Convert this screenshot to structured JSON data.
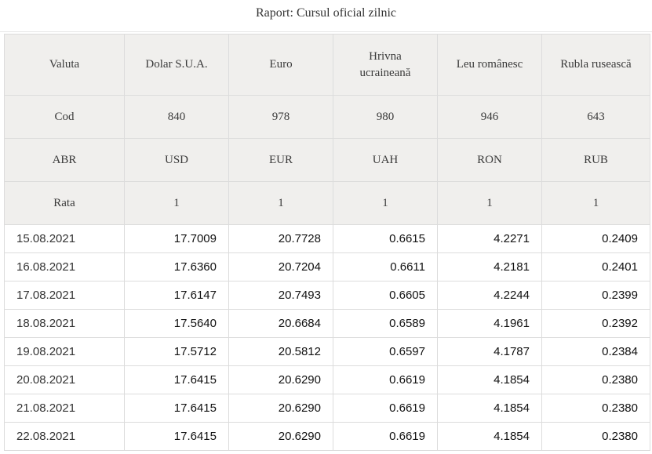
{
  "title": "Raport: Cursul oficial zilnic",
  "header": {
    "valuta": {
      "label": "Valuta",
      "names": [
        "Dolar S.U.A.",
        "Euro",
        "Hrivna ucraineană",
        "Leu românesc",
        "Rubla rusească"
      ]
    },
    "cod": {
      "label": "Cod",
      "values": [
        "840",
        "978",
        "980",
        "946",
        "643"
      ]
    },
    "abr": {
      "label": "ABR",
      "values": [
        "USD",
        "EUR",
        "UAH",
        "RON",
        "RUB"
      ]
    },
    "rata": {
      "label": "Rata",
      "values": [
        "1",
        "1",
        "1",
        "1",
        "1"
      ]
    }
  },
  "rows": [
    {
      "date": "15.08.2021",
      "values": [
        "17.7009",
        "20.7728",
        "0.6615",
        "4.2271",
        "0.2409"
      ]
    },
    {
      "date": "16.08.2021",
      "values": [
        "17.6360",
        "20.7204",
        "0.6611",
        "4.2181",
        "0.2401"
      ]
    },
    {
      "date": "17.08.2021",
      "values": [
        "17.6147",
        "20.7493",
        "0.6605",
        "4.2244",
        "0.2399"
      ]
    },
    {
      "date": "18.08.2021",
      "values": [
        "17.5640",
        "20.6684",
        "0.6589",
        "4.1961",
        "0.2392"
      ]
    },
    {
      "date": "19.08.2021",
      "values": [
        "17.5712",
        "20.5812",
        "0.6597",
        "4.1787",
        "0.2384"
      ]
    },
    {
      "date": "20.08.2021",
      "values": [
        "17.6415",
        "20.6290",
        "0.6619",
        "4.1854",
        "0.2380"
      ]
    },
    {
      "date": "21.08.2021",
      "values": [
        "17.6415",
        "20.6290",
        "0.6619",
        "4.1854",
        "0.2380"
      ]
    },
    {
      "date": "22.08.2021",
      "values": [
        "17.6415",
        "20.6290",
        "0.6619",
        "4.1854",
        "0.2380"
      ]
    }
  ]
}
